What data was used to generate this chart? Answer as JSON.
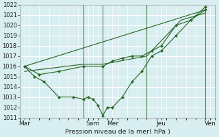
{
  "title": "Pression niveau de la mer( hPa )",
  "bg_color": "#d8eef0",
  "grid_color": "#b8d8dc",
  "line_color": "#2d6a2d",
  "ylim": [
    1011,
    1022
  ],
  "yticks": [
    1011,
    1012,
    1013,
    1014,
    1015,
    1016,
    1017,
    1018,
    1019,
    1020,
    1021,
    1022
  ],
  "xlim": [
    0,
    20
  ],
  "day_positions": [
    0.5,
    7.5,
    9.5,
    14.5,
    19.5
  ],
  "day_labels": [
    "Mar",
    "Sam",
    "Mer",
    "Jeu",
    "Ven"
  ],
  "vline_positions": [
    6.5,
    8.5,
    13.0,
    19.0
  ],
  "line1": {
    "x": [
      0.5,
      1.5,
      2.5,
      4.0,
      5.5,
      6.5,
      7.0,
      7.5,
      8.0,
      8.5,
      9.0,
      9.5,
      10.5,
      11.5,
      12.5,
      13.5,
      14.5,
      16.0,
      17.5,
      19.0
    ],
    "y": [
      1016,
      1015,
      1014.5,
      1013,
      1013,
      1012.8,
      1013,
      1012.8,
      1012.2,
      1011.2,
      1012,
      1012,
      1013,
      1014.5,
      1015.5,
      1017,
      1017.5,
      1019,
      1020.5,
      1021.8
    ]
  },
  "line2": {
    "x": [
      0.5,
      2.0,
      4.0,
      6.5,
      8.5,
      9.5,
      10.5,
      11.5,
      12.5,
      13.5,
      14.5,
      16.0,
      17.5,
      19.0
    ],
    "y": [
      1016,
      1015.2,
      1015.5,
      1016,
      1016,
      1016.5,
      1016.8,
      1017,
      1017,
      1017.5,
      1018,
      1020,
      1020.5,
      1021.5
    ]
  },
  "line3": {
    "x": [
      0.5,
      6.5,
      8.5,
      13.0,
      16.5,
      19.0
    ],
    "y": [
      1015.5,
      1016.2,
      1016.2,
      1017,
      1020.5,
      1021.2
    ]
  },
  "line4": {
    "x": [
      0.5,
      19.0
    ],
    "y": [
      1016,
      1021.5
    ]
  }
}
